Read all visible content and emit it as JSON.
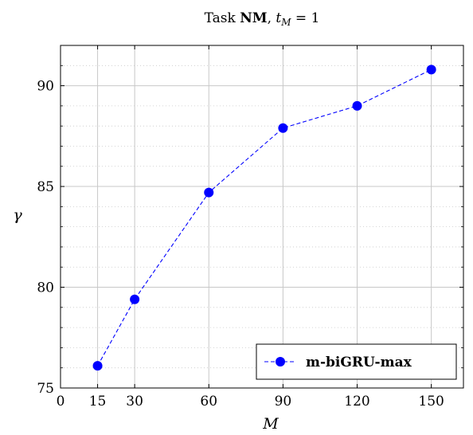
{
  "chart_data": {
    "type": "line",
    "title": {
      "prefix": "Task ",
      "task": "NM",
      "sep": ", ",
      "var": "t",
      "sub": "M",
      "eq": " = 1"
    },
    "xlabel": "M",
    "ylabel": "γ",
    "xlim": [
      0,
      163
    ],
    "ylim": [
      75,
      92
    ],
    "xticks": [
      0,
      15,
      30,
      60,
      90,
      120,
      150
    ],
    "yticks": [
      75,
      80,
      85,
      90
    ],
    "y_minor_step": 1,
    "grid": true,
    "legend_position": "bottom-right",
    "series": [
      {
        "name": "m-biGRU-max",
        "color": "#0000ff",
        "line_style": "dashed",
        "marker": "circle",
        "x": [
          15,
          30,
          60,
          90,
          120,
          150
        ],
        "y": [
          76.1,
          79.4,
          84.7,
          87.9,
          89.0,
          90.8
        ]
      }
    ]
  }
}
